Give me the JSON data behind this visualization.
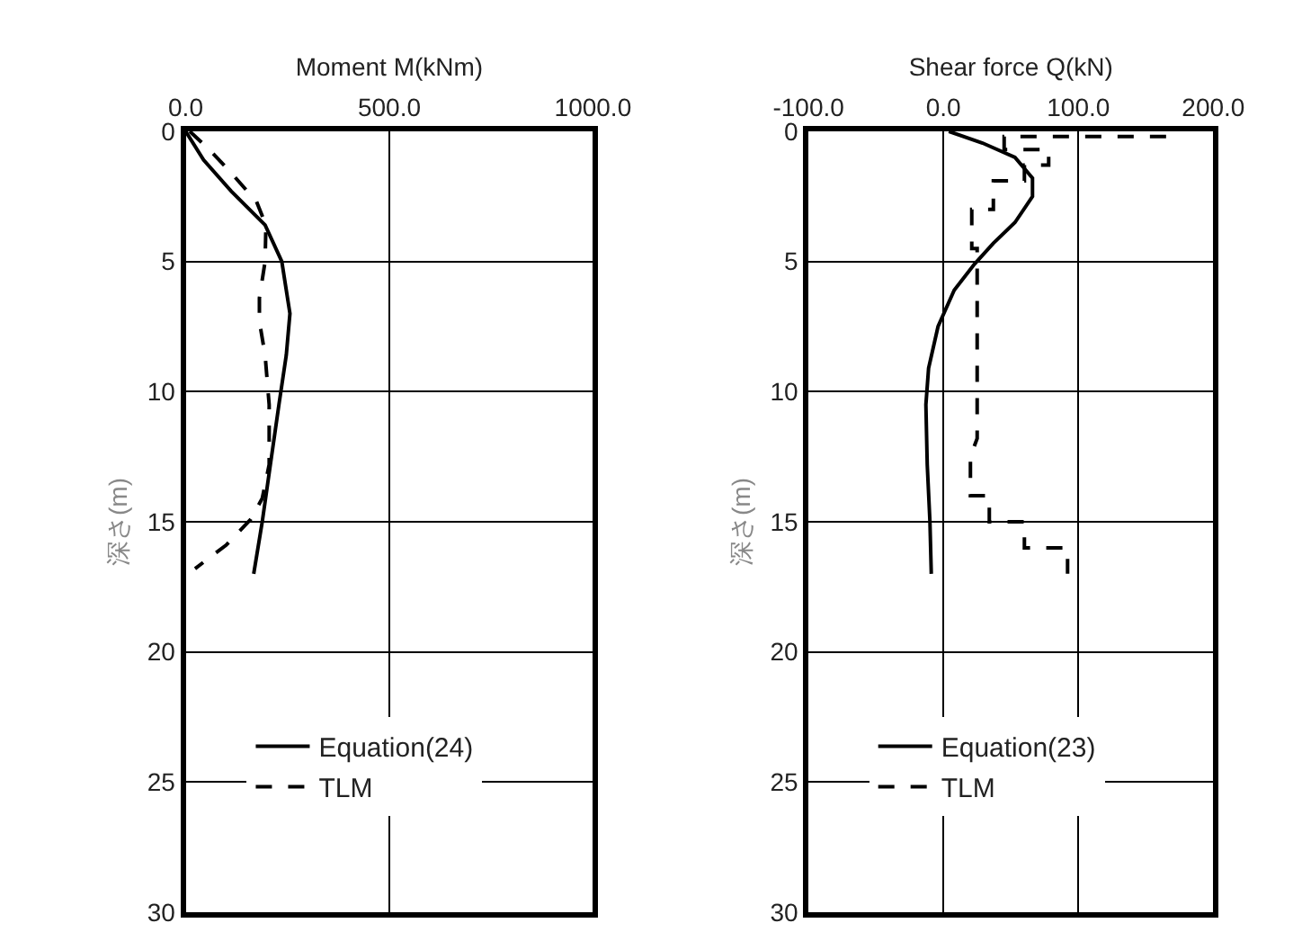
{
  "chart_data": [
    {
      "type": "line",
      "xlabel": "Moment M(kNm)",
      "ylabel": "深さ(m)",
      "xlim": [
        0,
        1000
      ],
      "xticks": [
        {
          "value": 0,
          "label": "0.0"
        },
        {
          "value": 500,
          "label": "500.0"
        },
        {
          "value": 1000,
          "label": "1000.0"
        }
      ],
      "ylim": [
        30,
        0
      ],
      "yticks": [
        0,
        5,
        10,
        15,
        20,
        25,
        30
      ],
      "grid": true,
      "legend": "bottom left",
      "series": [
        {
          "name": "Equation(24)",
          "color": "#000000",
          "line_style": "solid",
          "x": [
            0,
            44,
            112,
            195,
            236,
            256,
            247,
            229,
            208,
            188,
            167
          ],
          "values": [
            0,
            1.1,
            2.3,
            3.6,
            5,
            7,
            8.6,
            10.5,
            12.8,
            15,
            17
          ]
        },
        {
          "name": "TLM",
          "color": "#000000",
          "line_style": "dashed",
          "x": [
            10,
            58,
            112,
            174,
            197,
            195,
            181,
            181,
            195,
            205,
            205,
            188,
            160,
            99,
            23
          ],
          "values": [
            0,
            0.7,
            1.6,
            2.7,
            3.6,
            5,
            6.4,
            7.3,
            8.6,
            10.5,
            12.8,
            14.1,
            14.9,
            15.9,
            16.8
          ]
        }
      ]
    },
    {
      "type": "line",
      "xlabel": "Shear force Q(kN)",
      "ylabel": "深さ(m)",
      "xlim": [
        -100,
        200
      ],
      "xticks": [
        {
          "value": -100,
          "label": "-100.0"
        },
        {
          "value": 0,
          "label": "0.0"
        },
        {
          "value": 100,
          "label": "100.0"
        },
        {
          "value": 200,
          "label": "200.0"
        }
      ],
      "ylim": [
        30,
        0
      ],
      "yticks": [
        0,
        5,
        10,
        15,
        20,
        25,
        30
      ],
      "grid": true,
      "legend": "bottom left",
      "series": [
        {
          "name": "Equation(23)",
          "color": "#000000",
          "line_style": "solid",
          "x": [
            4,
            29,
            53,
            66,
            66,
            53,
            37,
            23,
            8,
            -4,
            -11,
            -13,
            -12,
            -10,
            -9
          ],
          "values": [
            0,
            0.45,
            1,
            1.8,
            2.5,
            3.5,
            4.3,
            5.1,
            6.1,
            7.5,
            9.1,
            10.5,
            12.8,
            15,
            17
          ]
        },
        {
          "name": "TLM",
          "color": "#000000",
          "line_style": "dashed",
          "x": [
            165,
            45,
            45,
            78,
            78,
            60,
            60,
            37,
            37,
            21,
            21,
            25,
            25,
            20,
            20,
            34,
            34,
            60,
            60,
            92,
            92
          ],
          "values": [
            0.2,
            0.2,
            0.7,
            0.7,
            1.3,
            1.3,
            1.9,
            1.9,
            3,
            3,
            4.5,
            4.5,
            11.8,
            12.5,
            14,
            14,
            15,
            15,
            16,
            16,
            17
          ]
        }
      ]
    }
  ]
}
